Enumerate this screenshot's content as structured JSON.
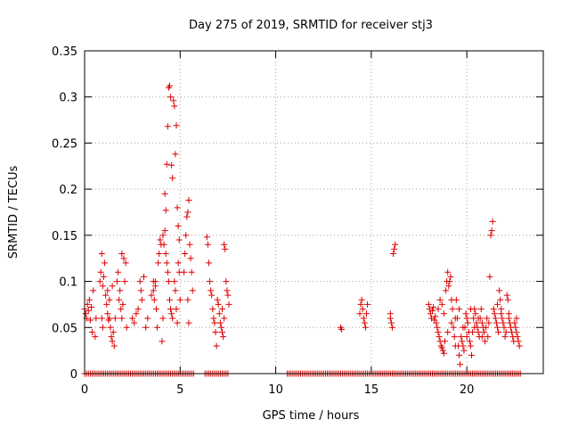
{
  "chart_data": {
    "type": "scatter",
    "title": "Day 275 of 2019, SRMTID for receiver stj3",
    "xlabel": "GPS time / hours",
    "ylabel": "SRMTID / TECUs",
    "xlim": [
      0,
      24
    ],
    "ylim": [
      0,
      0.35
    ],
    "xticks": [
      0,
      5,
      10,
      15,
      20
    ],
    "xtick_labels": [
      "0",
      "5",
      "10",
      "15",
      "20"
    ],
    "yticks": [
      0,
      0.05,
      0.1,
      0.15,
      0.2,
      0.25,
      0.3,
      0.35
    ],
    "ytick_labels": [
      "0",
      "0.05",
      "0.1",
      "0.15",
      "0.2",
      "0.25",
      "0.3",
      "0.35"
    ],
    "grid": true,
    "marker": "plus",
    "color": "#dd0000",
    "series": [
      {
        "name": "SRMTID",
        "points": [
          [
            0.0,
            0.07
          ],
          [
            0.05,
            0.065
          ],
          [
            0.1,
            0.06
          ],
          [
            0.15,
            0.075
          ],
          [
            0.2,
            0.068
          ],
          [
            0.25,
            0.08
          ],
          [
            0.3,
            0.058
          ],
          [
            0.35,
            0.072
          ],
          [
            0.4,
            0.045
          ],
          [
            0.45,
            0.09
          ],
          [
            0.55,
            0.04
          ],
          [
            0.6,
            0.06
          ],
          [
            0.8,
            0.1
          ],
          [
            0.85,
            0.11
          ],
          [
            0.9,
            0.13
          ],
          [
            0.95,
            0.095
          ],
          [
            1.0,
            0.105
          ],
          [
            1.05,
            0.12
          ],
          [
            1.1,
            0.085
          ],
          [
            1.15,
            0.075
          ],
          [
            1.2,
            0.09
          ],
          [
            0.9,
            0.06
          ],
          [
            0.95,
            0.05
          ],
          [
            1.2,
            0.065
          ],
          [
            1.25,
            0.058
          ],
          [
            1.3,
            0.06
          ],
          [
            1.35,
            0.05
          ],
          [
            1.4,
            0.04
          ],
          [
            1.45,
            0.035
          ],
          [
            1.5,
            0.045
          ],
          [
            1.55,
            0.03
          ],
          [
            1.6,
            0.06
          ],
          [
            1.3,
            0.08
          ],
          [
            1.45,
            0.095
          ],
          [
            1.7,
            0.1
          ],
          [
            1.75,
            0.11
          ],
          [
            1.8,
            0.08
          ],
          [
            1.85,
            0.09
          ],
          [
            1.9,
            0.07
          ],
          [
            1.95,
            0.06
          ],
          [
            2.0,
            0.075
          ],
          [
            2.05,
            0.125
          ],
          [
            2.1,
            0.1
          ],
          [
            2.15,
            0.12
          ],
          [
            2.2,
            0.05
          ],
          [
            1.95,
            0.13
          ],
          [
            2.5,
            0.06
          ],
          [
            2.6,
            0.055
          ],
          [
            2.7,
            0.065
          ],
          [
            2.8,
            0.07
          ],
          [
            2.9,
            0.1
          ],
          [
            2.95,
            0.09
          ],
          [
            3.0,
            0.08
          ],
          [
            3.1,
            0.105
          ],
          [
            3.2,
            0.05
          ],
          [
            3.3,
            0.06
          ],
          [
            3.5,
            0.085
          ],
          [
            3.6,
            0.09
          ],
          [
            3.65,
            0.08
          ],
          [
            3.7,
            0.1
          ],
          [
            3.75,
            0.07
          ],
          [
            3.8,
            0.05
          ],
          [
            3.85,
            0.12
          ],
          [
            3.9,
            0.13
          ],
          [
            3.95,
            0.145
          ],
          [
            4.0,
            0.14
          ],
          [
            4.05,
            0.035
          ],
          [
            4.1,
            0.06
          ],
          [
            3.6,
            0.1
          ],
          [
            3.7,
            0.095
          ],
          [
            4.1,
            0.15
          ],
          [
            4.15,
            0.14
          ],
          [
            4.2,
            0.155
          ],
          [
            4.25,
            0.13
          ],
          [
            4.3,
            0.12
          ],
          [
            4.35,
            0.11
          ],
          [
            4.4,
            0.1
          ],
          [
            4.45,
            0.08
          ],
          [
            4.5,
            0.07
          ],
          [
            4.55,
            0.065
          ],
          [
            4.6,
            0.06
          ],
          [
            4.2,
            0.195
          ],
          [
            4.25,
            0.177
          ],
          [
            4.3,
            0.227
          ],
          [
            4.35,
            0.268
          ],
          [
            4.4,
            0.31
          ],
          [
            4.45,
            0.312
          ],
          [
            4.5,
            0.3
          ],
          [
            4.55,
            0.226
          ],
          [
            4.6,
            0.212
          ],
          [
            4.65,
            0.296
          ],
          [
            4.7,
            0.29
          ],
          [
            4.75,
            0.238
          ],
          [
            4.8,
            0.269
          ],
          [
            4.85,
            0.18
          ],
          [
            4.9,
            0.16
          ],
          [
            4.95,
            0.145
          ],
          [
            4.7,
            0.1
          ],
          [
            4.75,
            0.09
          ],
          [
            4.8,
            0.07
          ],
          [
            4.85,
            0.055
          ],
          [
            4.9,
            0.12
          ],
          [
            4.95,
            0.11
          ],
          [
            5.0,
            0.08
          ],
          [
            5.2,
            0.11
          ],
          [
            5.25,
            0.13
          ],
          [
            5.3,
            0.15
          ],
          [
            5.35,
            0.17
          ],
          [
            5.4,
            0.175
          ],
          [
            5.45,
            0.188
          ],
          [
            5.5,
            0.14
          ],
          [
            5.55,
            0.125
          ],
          [
            5.6,
            0.11
          ],
          [
            5.65,
            0.09
          ],
          [
            5.4,
            0.08
          ],
          [
            5.45,
            0.055
          ],
          [
            6.4,
            0.148
          ],
          [
            6.45,
            0.14
          ],
          [
            6.5,
            0.12
          ],
          [
            6.55,
            0.1
          ],
          [
            6.6,
            0.09
          ],
          [
            6.65,
            0.085
          ],
          [
            6.7,
            0.07
          ],
          [
            6.75,
            0.06
          ],
          [
            6.8,
            0.055
          ],
          [
            6.85,
            0.045
          ],
          [
            6.9,
            0.03
          ],
          [
            6.95,
            0.08
          ],
          [
            7.0,
            0.075
          ],
          [
            7.05,
            0.065
          ],
          [
            7.1,
            0.055
          ],
          [
            7.15,
            0.05
          ],
          [
            7.2,
            0.045
          ],
          [
            7.25,
            0.04
          ],
          [
            7.3,
            0.14
          ],
          [
            7.35,
            0.135
          ],
          [
            7.4,
            0.1
          ],
          [
            7.45,
            0.09
          ],
          [
            7.5,
            0.085
          ],
          [
            7.55,
            0.075
          ],
          [
            7.2,
            0.07
          ],
          [
            7.3,
            0.06
          ],
          [
            13.4,
            0.05
          ],
          [
            13.45,
            0.048
          ],
          [
            14.4,
            0.065
          ],
          [
            14.45,
            0.075
          ],
          [
            14.5,
            0.08
          ],
          [
            14.55,
            0.07
          ],
          [
            14.6,
            0.06
          ],
          [
            14.65,
            0.055
          ],
          [
            14.7,
            0.05
          ],
          [
            14.75,
            0.065
          ],
          [
            14.8,
            0.075
          ],
          [
            16.0,
            0.06
          ],
          [
            16.05,
            0.055
          ],
          [
            16.1,
            0.05
          ],
          [
            16.15,
            0.13
          ],
          [
            16.2,
            0.135
          ],
          [
            16.25,
            0.14
          ],
          [
            16.0,
            0.065
          ],
          [
            18.0,
            0.075
          ],
          [
            18.05,
            0.07
          ],
          [
            18.1,
            0.065
          ],
          [
            18.15,
            0.06
          ],
          [
            18.2,
            0.068
          ],
          [
            18.25,
            0.072
          ],
          [
            18.3,
            0.058
          ],
          [
            18.35,
            0.062
          ],
          [
            18.4,
            0.055
          ],
          [
            18.45,
            0.05
          ],
          [
            18.5,
            0.045
          ],
          [
            18.55,
            0.04
          ],
          [
            18.6,
            0.035
          ],
          [
            18.65,
            0.03
          ],
          [
            18.7,
            0.028
          ],
          [
            18.75,
            0.025
          ],
          [
            18.8,
            0.022
          ],
          [
            18.85,
            0.035
          ],
          [
            18.9,
            0.09
          ],
          [
            18.95,
            0.1
          ],
          [
            19.0,
            0.11
          ],
          [
            19.05,
            0.095
          ],
          [
            19.1,
            0.1
          ],
          [
            19.15,
            0.105
          ],
          [
            19.2,
            0.08
          ],
          [
            19.25,
            0.07
          ],
          [
            19.3,
            0.05
          ],
          [
            19.35,
            0.04
          ],
          [
            19.4,
            0.03
          ],
          [
            19.45,
            0.08
          ],
          [
            19.5,
            0.06
          ],
          [
            19.55,
            0.03
          ],
          [
            19.6,
            0.02
          ],
          [
            19.65,
            0.01
          ],
          [
            19.7,
            0.04
          ],
          [
            19.75,
            0.035
          ],
          [
            19.8,
            0.03
          ],
          [
            19.85,
            0.025
          ],
          [
            19.9,
            0.05
          ],
          [
            19.95,
            0.065
          ],
          [
            20.0,
            0.06
          ],
          [
            20.05,
            0.055
          ],
          [
            20.1,
            0.045
          ],
          [
            20.15,
            0.035
          ],
          [
            20.2,
            0.03
          ],
          [
            20.25,
            0.02
          ],
          [
            20.3,
            0.045
          ],
          [
            20.35,
            0.06
          ],
          [
            20.4,
            0.07
          ],
          [
            20.45,
            0.065
          ],
          [
            20.5,
            0.055
          ],
          [
            20.55,
            0.05
          ],
          [
            20.6,
            0.045
          ],
          [
            20.65,
            0.04
          ],
          [
            20.7,
            0.06
          ],
          [
            20.75,
            0.07
          ],
          [
            20.8,
            0.055
          ],
          [
            20.85,
            0.05
          ],
          [
            20.9,
            0.045
          ],
          [
            20.95,
            0.035
          ],
          [
            21.0,
            0.05
          ],
          [
            21.05,
            0.06
          ],
          [
            18.5,
            0.07
          ],
          [
            18.6,
            0.08
          ],
          [
            18.7,
            0.075
          ],
          [
            18.8,
            0.065
          ],
          [
            19.0,
            0.045
          ],
          [
            19.2,
            0.055
          ],
          [
            19.4,
            0.06
          ],
          [
            19.6,
            0.07
          ],
          [
            19.8,
            0.05
          ],
          [
            20.0,
            0.04
          ],
          [
            20.2,
            0.07
          ],
          [
            20.4,
            0.05
          ],
          [
            20.6,
            0.06
          ],
          [
            20.8,
            0.04
          ],
          [
            21.1,
            0.04
          ],
          [
            21.15,
            0.055
          ],
          [
            21.2,
            0.105
          ],
          [
            21.25,
            0.15
          ],
          [
            21.3,
            0.155
          ],
          [
            21.35,
            0.165
          ],
          [
            21.4,
            0.07
          ],
          [
            21.45,
            0.065
          ],
          [
            21.5,
            0.06
          ],
          [
            21.55,
            0.055
          ],
          [
            21.6,
            0.05
          ],
          [
            21.65,
            0.045
          ],
          [
            21.7,
            0.09
          ],
          [
            21.75,
            0.08
          ],
          [
            21.8,
            0.065
          ],
          [
            21.85,
            0.06
          ],
          [
            21.9,
            0.055
          ],
          [
            21.95,
            0.05
          ],
          [
            22.0,
            0.04
          ],
          [
            22.05,
            0.045
          ],
          [
            22.1,
            0.085
          ],
          [
            22.15,
            0.08
          ],
          [
            22.2,
            0.06
          ],
          [
            22.25,
            0.055
          ],
          [
            22.3,
            0.05
          ],
          [
            22.35,
            0.045
          ],
          [
            22.4,
            0.04
          ],
          [
            22.45,
            0.035
          ],
          [
            22.5,
            0.055
          ],
          [
            22.55,
            0.05
          ],
          [
            22.6,
            0.045
          ],
          [
            22.65,
            0.04
          ],
          [
            22.7,
            0.035
          ],
          [
            22.75,
            0.03
          ],
          [
            21.6,
            0.075
          ],
          [
            21.8,
            0.07
          ],
          [
            22.2,
            0.065
          ],
          [
            22.6,
            0.06
          ]
        ]
      }
    ],
    "zero_points_x": [
      0.0,
      0.1,
      0.2,
      0.3,
      0.4,
      0.5,
      0.6,
      0.7,
      0.8,
      0.9,
      1.0,
      1.1,
      1.2,
      1.3,
      1.4,
      1.5,
      1.6,
      1.7,
      1.8,
      1.9,
      2.0,
      2.1,
      2.2,
      2.3,
      2.4,
      2.5,
      2.6,
      2.7,
      2.8,
      2.9,
      3.0,
      3.1,
      3.2,
      3.3,
      3.4,
      3.5,
      3.6,
      3.7,
      3.8,
      3.9,
      4.0,
      4.1,
      4.2,
      4.3,
      4.4,
      4.5,
      4.6,
      4.7,
      4.8,
      4.9,
      5.0,
      5.1,
      5.2,
      5.3,
      5.4,
      5.5,
      5.6,
      5.7,
      6.3,
      6.4,
      6.5,
      6.6,
      6.7,
      6.8,
      6.9,
      7.0,
      7.1,
      7.2,
      7.3,
      7.4,
      7.5,
      10.6,
      10.7,
      10.8,
      10.9,
      11.0,
      11.1,
      11.2,
      11.3,
      11.4,
      11.5,
      11.6,
      11.7,
      11.8,
      11.9,
      12.0,
      12.1,
      12.2,
      12.3,
      12.4,
      12.5,
      12.6,
      12.7,
      12.8,
      12.9,
      13.0,
      13.1,
      13.2,
      13.3,
      13.4,
      13.5,
      13.6,
      13.7,
      13.8,
      13.9,
      14.0,
      14.1,
      14.2,
      14.3,
      14.4,
      14.5,
      14.6,
      14.7,
      14.8,
      14.9,
      15.0,
      15.1,
      15.2,
      15.3,
      15.4,
      15.5,
      15.6,
      15.7,
      15.8,
      15.9,
      16.0,
      16.1,
      16.2,
      16.3,
      16.4,
      16.5,
      16.6,
      16.7,
      16.8,
      16.9,
      17.0,
      17.1,
      17.2,
      17.3,
      17.4,
      17.5,
      17.6,
      17.7,
      17.8,
      17.9,
      18.0,
      18.1,
      18.2,
      18.3,
      18.4,
      18.5,
      18.6,
      18.7,
      18.8,
      18.9,
      19.0,
      19.1,
      19.2,
      19.3,
      19.4,
      19.5,
      19.6,
      19.7,
      19.8,
      19.9,
      20.0,
      20.1,
      20.2,
      20.3,
      20.4,
      20.5,
      20.6,
      20.7,
      20.8,
      20.9,
      21.0,
      21.1,
      21.2,
      21.3,
      21.4,
      21.5,
      21.6,
      21.7,
      21.8,
      21.9,
      22.0,
      22.1,
      22.2,
      22.3,
      22.4,
      22.5,
      22.6,
      22.7,
      22.8
    ]
  }
}
